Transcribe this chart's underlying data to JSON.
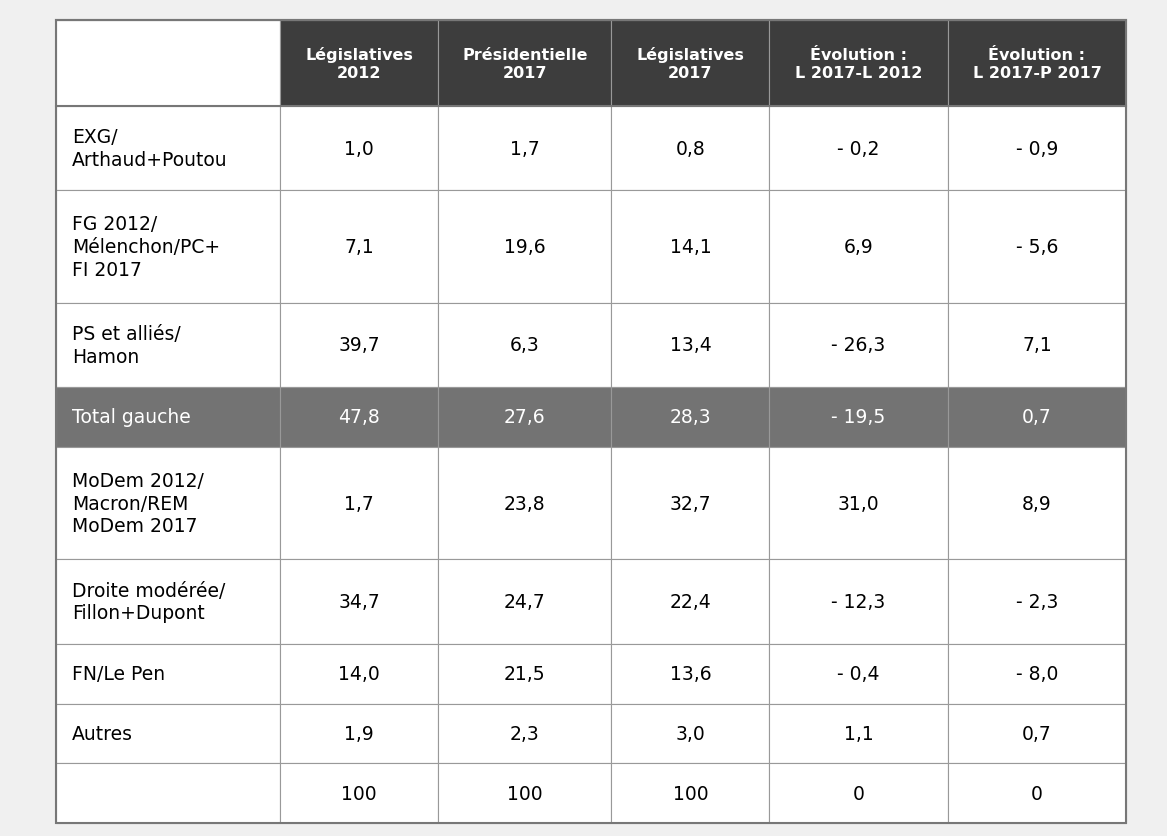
{
  "header_bg": "#3d3d3d",
  "header_fg": "#ffffff",
  "total_gauche_bg": "#737373",
  "total_gauche_fg": "#ffffff",
  "white_bg": "#ffffff",
  "black_fg": "#000000",
  "line_color": "#999999",
  "outer_line_color": "#777777",
  "header_cols": [
    "Législatives\n2012",
    "Présidentielle\n2017",
    "Législatives\n2017",
    "Évolution :\nL 2017-L 2012",
    "Évolution :\nL 2017-P 2017"
  ],
  "row_labels": [
    "EXG/\nArthaud+Poutou",
    "FG 2012/\nMélenchon/PC+\nFI 2017",
    "PS et alliés/\nHamon",
    "Total gauche",
    "MoDem 2012/\nMacron/REM\nMoDem 2017",
    "Droite modérée/\nFillon+Dupont",
    "FN/Le Pen",
    "Autres",
    ""
  ],
  "data": [
    [
      "1,0",
      "1,7",
      "0,8",
      "- 0,2",
      "- 0,9"
    ],
    [
      "7,1",
      "19,6",
      "14,1",
      "6,9",
      "- 5,6"
    ],
    [
      "39,7",
      "6,3",
      "13,4",
      "- 26,3",
      "7,1"
    ],
    [
      "47,8",
      "27,6",
      "28,3",
      "- 19,5",
      "0,7"
    ],
    [
      "1,7",
      "23,8",
      "32,7",
      "31,0",
      "8,9"
    ],
    [
      "34,7",
      "24,7",
      "22,4",
      "- 12,3",
      "- 2,3"
    ],
    [
      "14,0",
      "21,5",
      "13,6",
      "- 0,4",
      "- 8,0"
    ],
    [
      "1,9",
      "2,3",
      "3,0",
      "1,1",
      "0,7"
    ],
    [
      "100",
      "100",
      "100",
      "0",
      "0"
    ]
  ],
  "row_highlight": [
    false,
    false,
    false,
    true,
    false,
    false,
    false,
    false,
    false
  ],
  "header_fontsize": 11.5,
  "cell_fontsize": 13.5,
  "label_fontsize": 13.5,
  "fig_width": 11.67,
  "fig_height": 8.37,
  "fig_bg": "#f0f0f0"
}
